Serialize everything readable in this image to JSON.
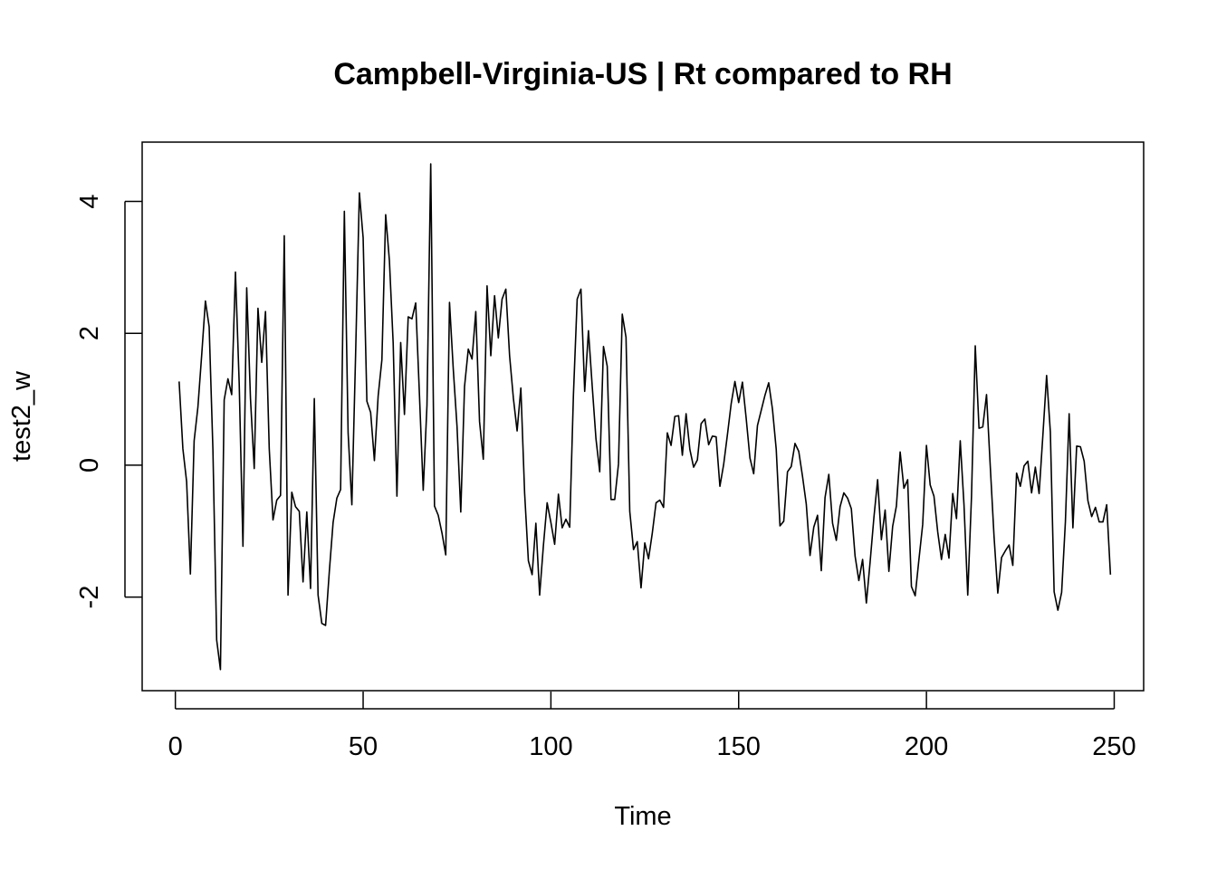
{
  "chart_data": {
    "type": "line",
    "title": "Campbell-Virginia-US | Rt compared to RH",
    "xlabel": "Time",
    "ylabel": "test2_w",
    "xlim": [
      -8.84,
      257.84
    ],
    "ylim": [
      -3.42,
      4.9
    ],
    "x_ticks": [
      0,
      50,
      100,
      150,
      200,
      250
    ],
    "x_tick_labels": [
      "0",
      "50",
      "100",
      "150",
      "200",
      "250"
    ],
    "y_ticks": [
      -2,
      0,
      2,
      4
    ],
    "y_tick_labels": [
      "-2",
      "0",
      "2",
      "4"
    ],
    "grid": false,
    "legend": "none",
    "line_color": "#000000",
    "series": [
      {
        "x_start": 1,
        "values": [
          1.27,
          0.25,
          -0.25,
          -1.65,
          0.37,
          0.88,
          1.66,
          2.49,
          2.1,
          0.24,
          -2.65,
          -3.1,
          0.99,
          1.31,
          1.07,
          2.93,
          1.24,
          -1.23,
          2.69,
          1.01,
          -0.05,
          2.38,
          1.56,
          2.33,
          0.25,
          -0.83,
          -0.53,
          -0.46,
          3.48,
          -1.97,
          -0.41,
          -0.63,
          -0.7,
          -1.77,
          -0.71,
          -1.87,
          1.01,
          -1.97,
          -2.4,
          -2.43,
          -1.61,
          -0.87,
          -0.5,
          -0.37,
          3.85,
          0.49,
          -0.6,
          1.69,
          4.13,
          3.45,
          0.97,
          0.8,
          0.07,
          1.05,
          1.6,
          3.8,
          3.1,
          1.85,
          -0.47,
          1.86,
          0.77,
          2.25,
          2.22,
          2.46,
          1.06,
          -0.38,
          0.91,
          4.57,
          -0.62,
          -0.76,
          -1.03,
          -1.36,
          2.47,
          1.46,
          0.59,
          -0.71,
          1.19,
          1.76,
          1.61,
          2.33,
          0.66,
          0.09,
          2.72,
          1.66,
          2.57,
          1.93,
          2.52,
          2.67,
          1.66,
          1.02,
          0.52,
          1.17,
          -0.42,
          -1.45,
          -1.66,
          -0.88,
          -1.97,
          -1.22,
          -0.57,
          -0.87,
          -1.2,
          -0.44,
          -0.95,
          -0.82,
          -0.94,
          1.07,
          2.52,
          2.67,
          1.12,
          2.04,
          1.2,
          0.4,
          -0.1,
          1.8,
          1.5,
          -0.52,
          -0.52,
          0.02,
          2.29,
          1.94,
          -0.7,
          -1.28,
          -1.16,
          -1.86,
          -1.18,
          -1.42,
          -1.03,
          -0.57,
          -0.53,
          -0.64,
          0.49,
          0.3,
          0.74,
          0.75,
          0.15,
          0.78,
          0.24,
          -0.03,
          0.08,
          0.63,
          0.7,
          0.31,
          0.44,
          0.43,
          -0.32,
          0.01,
          0.46,
          0.93,
          1.27,
          0.95,
          1.26,
          0.71,
          0.11,
          -0.13,
          0.6,
          0.83,
          1.06,
          1.25,
          0.85,
          0.24,
          -0.92,
          -0.85,
          -0.1,
          -0.02,
          0.33,
          0.21,
          -0.17,
          -0.59,
          -1.37,
          -0.94,
          -0.76,
          -1.6,
          -0.49,
          -0.14,
          -0.88,
          -1.14,
          -0.63,
          -0.42,
          -0.5,
          -0.66,
          -1.38,
          -1.75,
          -1.43,
          -2.09,
          -1.47,
          -0.8,
          -0.22,
          -1.13,
          -0.68,
          -1.61,
          -0.93,
          -0.62,
          0.2,
          -0.35,
          -0.22,
          -1.84,
          -1.98,
          -1.43,
          -0.9,
          0.3,
          -0.3,
          -0.47,
          -1.01,
          -1.43,
          -1.05,
          -1.41,
          -0.43,
          -0.81,
          0.37,
          -0.6,
          -1.97,
          -0.47,
          1.81,
          0.56,
          0.58,
          1.07,
          -0.02,
          -1.08,
          -1.94,
          -1.4,
          -1.3,
          -1.21,
          -1.52,
          -0.12,
          -0.32,
          -0.01,
          0.06,
          -0.42,
          -0.03,
          -0.43,
          0.45,
          1.36,
          0.5,
          -1.92,
          -2.2,
          -1.93,
          -0.86,
          0.78,
          -0.95,
          0.29,
          0.28,
          0.06,
          -0.54,
          -0.78,
          -0.64,
          -0.86,
          -0.86,
          -0.6,
          -1.66
        ]
      }
    ]
  }
}
